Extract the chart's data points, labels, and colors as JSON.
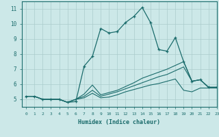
{
  "xlabel": "Humidex (Indice chaleur)",
  "xlim": [
    -0.5,
    23
  ],
  "ylim": [
    4.5,
    11.5
  ],
  "yticks": [
    5,
    6,
    7,
    8,
    9,
    10,
    11
  ],
  "xticks": [
    0,
    1,
    2,
    3,
    4,
    5,
    6,
    7,
    8,
    9,
    10,
    11,
    12,
    13,
    14,
    15,
    16,
    17,
    18,
    19,
    20,
    21,
    22,
    23
  ],
  "bg_color": "#cce8e8",
  "line_color": "#1a6b6b",
  "grid_color": "#aacccc",
  "series": [
    [
      5.2,
      5.2,
      5.0,
      5.0,
      5.0,
      4.8,
      4.85,
      7.2,
      7.85,
      9.7,
      9.4,
      9.5,
      10.1,
      10.5,
      11.1,
      10.1,
      8.3,
      8.2,
      9.1,
      7.5,
      6.2,
      6.3,
      5.8,
      5.8
    ],
    [
      5.2,
      5.2,
      5.0,
      5.0,
      5.0,
      4.8,
      5.0,
      5.35,
      5.95,
      5.3,
      5.45,
      5.6,
      5.85,
      6.1,
      6.4,
      6.6,
      6.8,
      7.0,
      7.25,
      7.5,
      6.2,
      6.3,
      5.8,
      5.8
    ],
    [
      5.2,
      5.2,
      5.0,
      5.0,
      5.0,
      4.8,
      5.0,
      5.2,
      5.6,
      5.2,
      5.35,
      5.5,
      5.7,
      5.9,
      6.1,
      6.3,
      6.5,
      6.65,
      6.9,
      7.15,
      6.2,
      6.3,
      5.8,
      5.8
    ],
    [
      5.2,
      5.2,
      5.0,
      5.0,
      5.0,
      4.8,
      5.0,
      5.1,
      5.4,
      5.1,
      5.15,
      5.3,
      5.5,
      5.65,
      5.8,
      5.95,
      6.05,
      6.2,
      6.35,
      5.6,
      5.5,
      5.75,
      5.75,
      5.75
    ]
  ]
}
